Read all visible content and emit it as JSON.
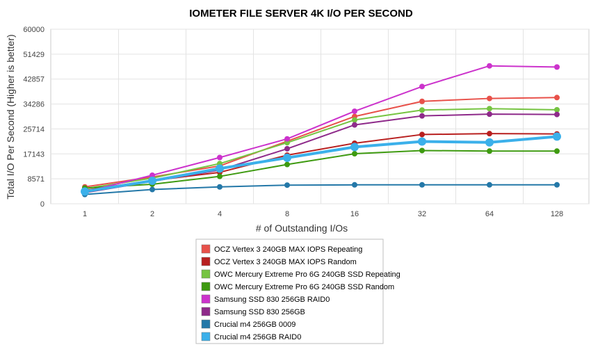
{
  "chart_data": {
    "type": "line",
    "title": "IOMETER FILE SERVER 4K I/O PER SECOND",
    "xlabel": "# of Outstanding I/Os",
    "ylabel": "Total I/O Per Second (Higher is better)",
    "categories": [
      "1",
      "2",
      "4",
      "8",
      "16",
      "32",
      "64",
      "128"
    ],
    "ylim": [
      0,
      60000
    ],
    "yticks": [
      "0",
      "8571",
      "17143",
      "25714",
      "34286",
      "42857",
      "51429",
      "60000"
    ],
    "grid": true,
    "legend_position": "bottom",
    "series": [
      {
        "name": "OCZ Vertex 3 240GB MAX IOPS Repeating",
        "color": "#e8514a",
        "values": [
          5800,
          9200,
          13000,
          21500,
          30000,
          35200,
          36200,
          36500
        ]
      },
      {
        "name": "OCZ Vertex 3 240GB MAX IOPS Random",
        "color": "#b82020",
        "values": [
          4600,
          8000,
          10800,
          16700,
          20800,
          23800,
          24100,
          24000
        ]
      },
      {
        "name": "OWC Mercury Extreme Pro 6G 240GB SSD Repeating",
        "color": "#76c442",
        "values": [
          5200,
          8800,
          13800,
          21000,
          28800,
          32200,
          32700,
          32300
        ]
      },
      {
        "name": "OWC Mercury Extreme Pro 6G 240GB SSD Random",
        "color": "#3e9a10",
        "values": [
          5400,
          6700,
          9400,
          13500,
          17200,
          18300,
          18100,
          18100
        ]
      },
      {
        "name": "Samsung SSD 830 256GB RAID0",
        "color": "#cc33cc",
        "values": [
          4100,
          9800,
          15900,
          22300,
          31800,
          40300,
          47400,
          47000
        ]
      },
      {
        "name": "Samsung SSD 830 256GB",
        "color": "#8e2a8a",
        "values": [
          3800,
          7700,
          11600,
          18900,
          27100,
          30200,
          30800,
          30700
        ]
      },
      {
        "name": "Crucial m4 256GB 0009",
        "color": "#2478a8",
        "values": [
          3200,
          4900,
          5800,
          6400,
          6500,
          6500,
          6500,
          6500
        ]
      },
      {
        "name": "Crucial m4 256GB RAID0",
        "color": "#3bb0ea",
        "values": [
          4200,
          7900,
          12100,
          15800,
          19500,
          21400,
          21100,
          23100
        ]
      }
    ]
  }
}
